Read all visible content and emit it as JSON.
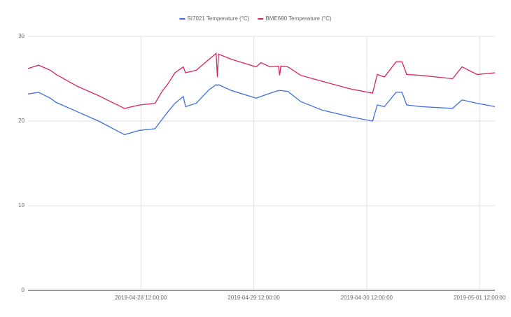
{
  "chart_data": {
    "type": "line",
    "x": [
      "2019-04-27 12:00:00",
      "2019-04-27 14:15:00",
      "2019-04-27 16:45:00",
      "2019-04-27 18:00:00",
      "2019-04-27 22:30:00",
      "2019-04-28 03:00:00",
      "2019-04-28 08:30:00",
      "2019-04-28 11:45:00",
      "2019-04-28 15:00:00",
      "2019-04-28 16:30:00",
      "2019-04-28 17:45:00",
      "2019-04-28 19:15:00",
      "2019-04-28 21:00:00",
      "2019-04-28 21:30:00",
      "2019-04-28 23:45:00",
      "2019-04-29 02:30:00",
      "2019-04-29 04:00:00",
      "2019-04-29 04:15:00",
      "2019-04-29 04:30:00",
      "2019-04-29 07:15:00",
      "2019-04-29 12:30:00",
      "2019-04-29 13:30:00",
      "2019-04-29 15:30:00",
      "2019-04-29 17:15:00",
      "2019-04-29 17:30:00",
      "2019-04-29 17:45:00",
      "2019-04-29 19:15:00",
      "2019-04-29 22:00:00",
      "2019-04-30 02:30:00",
      "2019-04-30 08:30:00",
      "2019-04-30 13:15:00",
      "2019-04-30 14:15:00",
      "2019-04-30 15:45:00",
      "2019-04-30 18:15:00",
      "2019-04-30 19:30:00",
      "2019-04-30 20:30:00",
      "2019-04-30 23:30:00",
      "2019-05-01 06:15:00",
      "2019-05-01 08:15:00",
      "2019-05-01 11:30:00",
      "2019-05-01 15:15:00"
    ],
    "series": [
      {
        "name": "SI7021 Temperature (°C)",
        "color": "#3d6fe0",
        "values": [
          23.2,
          23.4,
          22.7,
          22.2,
          21.1,
          20.0,
          18.4,
          18.9,
          19.1,
          20.2,
          21.1,
          22.1,
          22.9,
          21.7,
          22.1,
          23.7,
          24.3,
          24.2,
          24.3,
          23.6,
          22.7,
          22.9,
          23.3,
          23.6,
          23.6,
          23.6,
          23.5,
          22.3,
          21.3,
          20.5,
          20.0,
          21.9,
          21.7,
          23.4,
          23.4,
          21.9,
          21.7,
          21.5,
          22.5,
          22.1,
          21.7
        ]
      },
      {
        "name": "BME680 Temperature (°C)",
        "color": "#d6245a",
        "values": [
          26.2,
          26.6,
          26.0,
          25.5,
          24.1,
          23.0,
          21.5,
          21.9,
          22.1,
          23.5,
          24.4,
          25.7,
          26.4,
          25.7,
          26.0,
          27.3,
          28.0,
          25.2,
          27.9,
          27.3,
          26.4,
          26.9,
          26.4,
          26.5,
          25.4,
          26.5,
          26.4,
          25.4,
          24.7,
          23.8,
          23.3,
          25.5,
          25.2,
          27.0,
          27.0,
          25.5,
          25.4,
          25.0,
          26.4,
          25.5,
          25.7
        ]
      }
    ],
    "xlim": [
      "2019-04-27 12:00:00",
      "2019-05-01 15:15:00"
    ],
    "xticks": [
      "2019-04-28 12:00:00",
      "2019-04-29 12:00:00",
      "2019-04-30 12:00:00",
      "2019-05-01 12:00:00"
    ],
    "ylim": [
      0,
      30
    ],
    "yticks": [
      0,
      10,
      20,
      30
    ],
    "grid": true,
    "legend": "top"
  }
}
